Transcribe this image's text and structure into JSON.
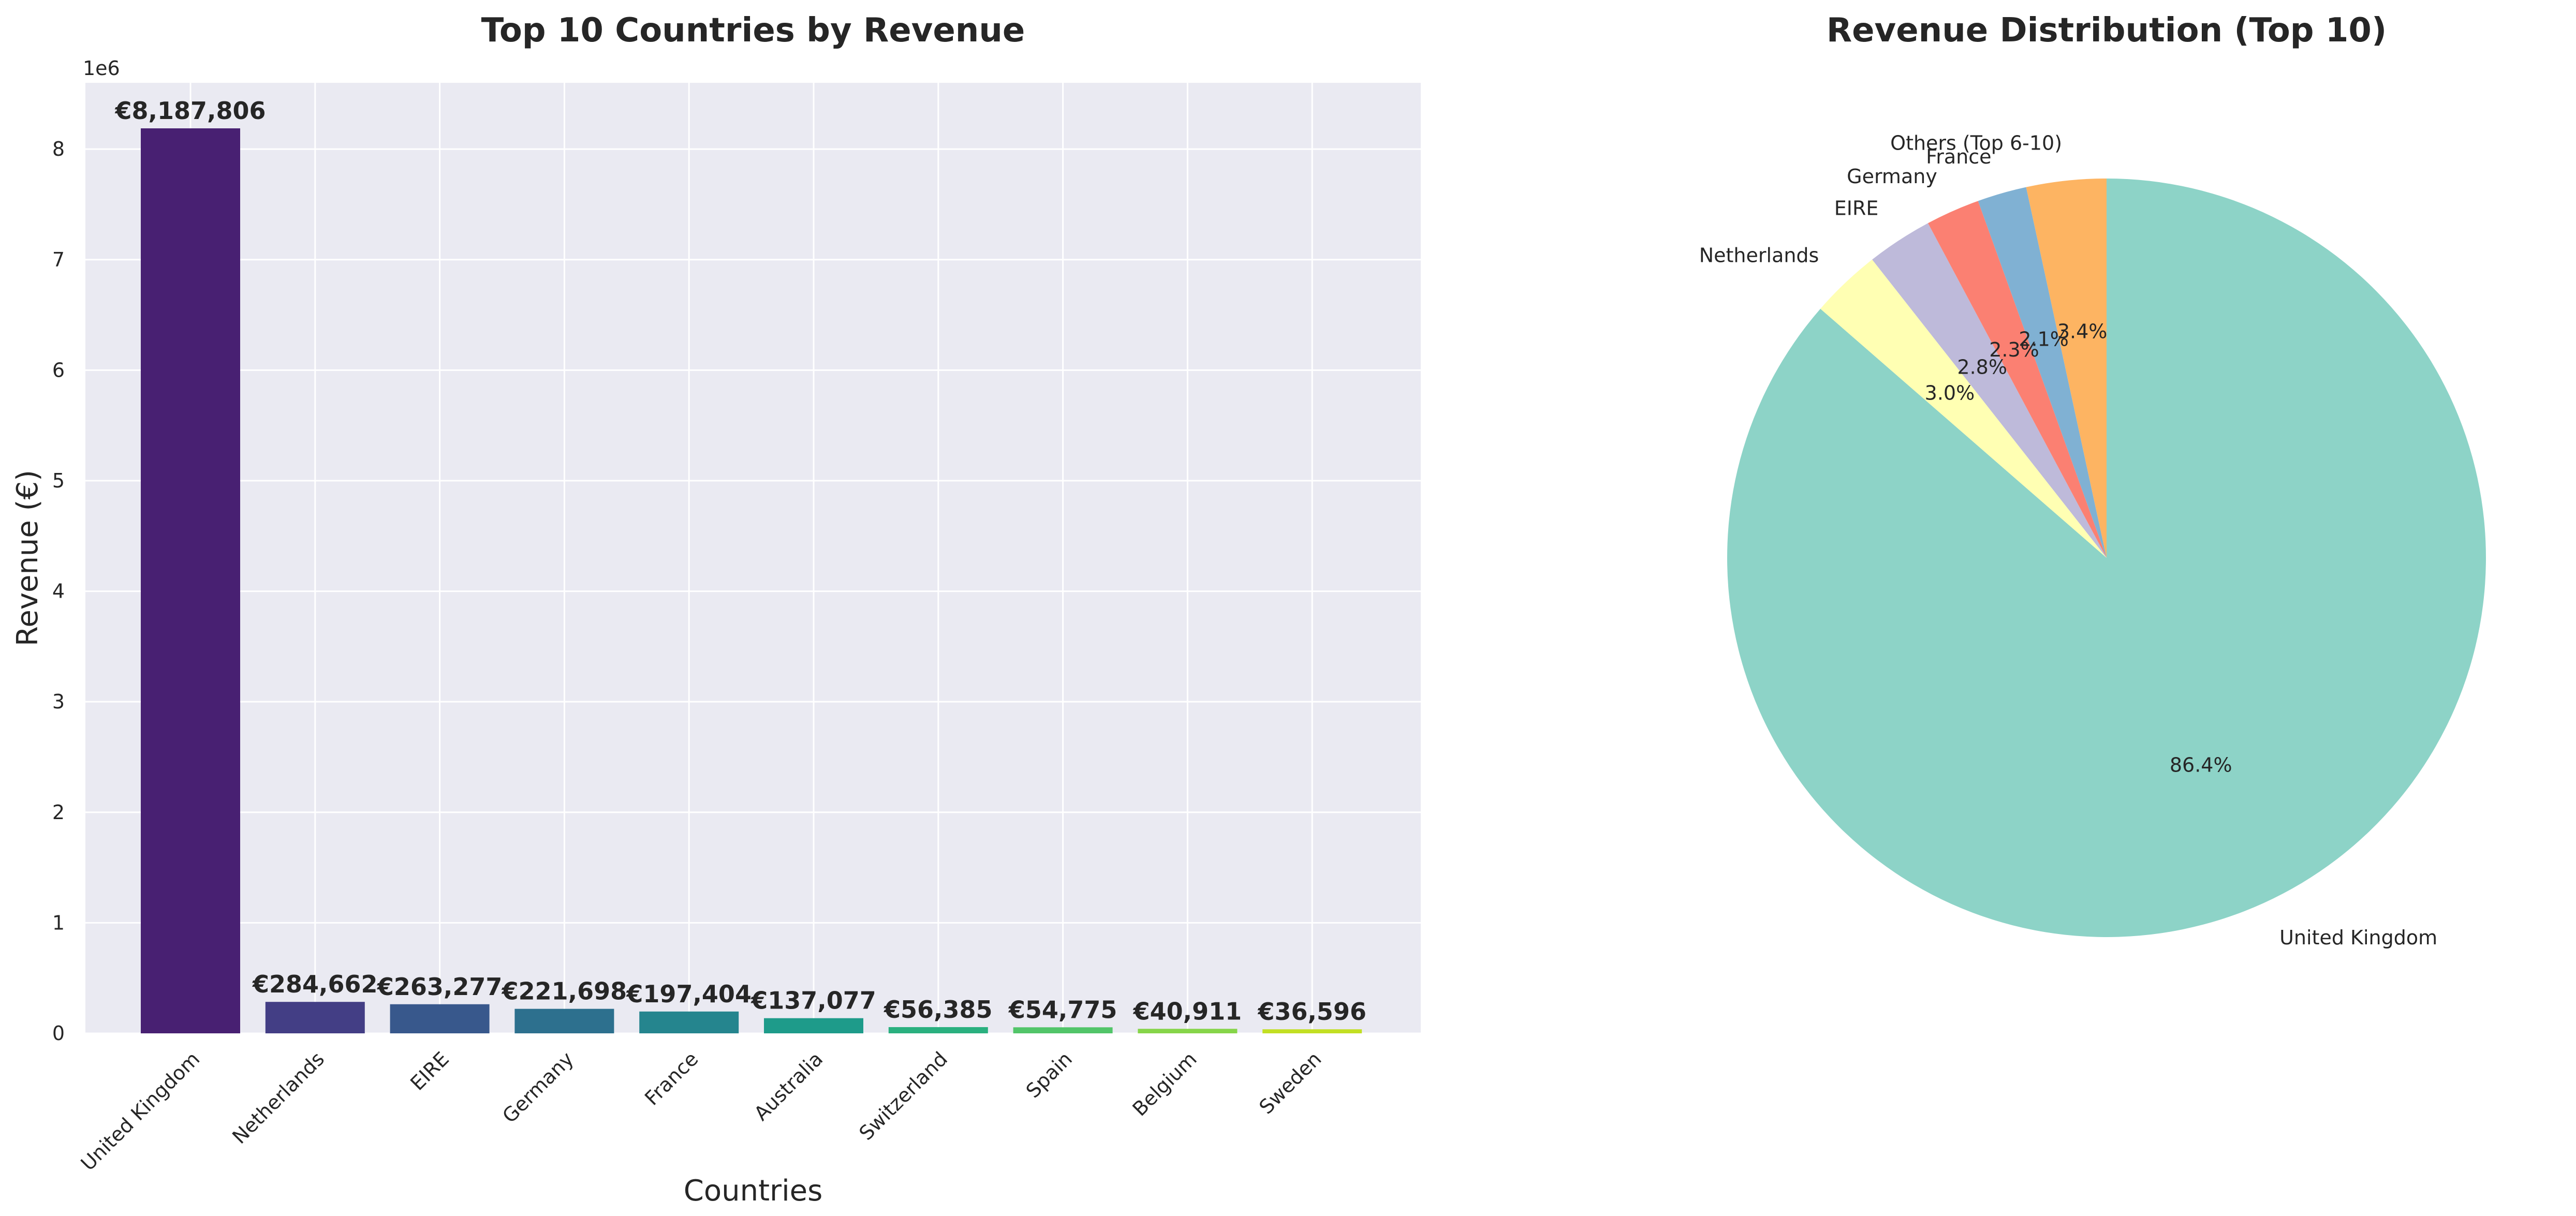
{
  "chart_data": [
    {
      "type": "bar",
      "title": "Top 10 Countries by Revenue",
      "xlabel": "Countries",
      "ylabel": "Revenue (€)",
      "y_offset_label": "1e6",
      "ylim": [
        0,
        8600000
      ],
      "yticks": [
        "0",
        "1",
        "2",
        "3",
        "4",
        "5",
        "6",
        "7",
        "8"
      ],
      "grid": true,
      "categories": [
        "United Kingdom",
        "Netherlands",
        "EIRE",
        "Germany",
        "France",
        "Australia",
        "Switzerland",
        "Spain",
        "Belgium",
        "Sweden"
      ],
      "values": [
        8187806,
        284662,
        263277,
        221698,
        197404,
        137077,
        56385,
        54775,
        40911,
        36596
      ],
      "value_labels": [
        "€8,187,806",
        "€284,662",
        "€263,277",
        "€221,698",
        "€197,404",
        "€137,077",
        "€56,385",
        "€54,775",
        "€40,911",
        "€36,596"
      ],
      "colors": [
        "#482072",
        "#433e85",
        "#38588c",
        "#2d708e",
        "#25858e",
        "#1e9b8a",
        "#2ab07f",
        "#52c569",
        "#86d549",
        "#c2df23"
      ]
    },
    {
      "type": "pie",
      "title": "Revenue Distribution (Top 10)",
      "labels": [
        "United Kingdom",
        "Netherlands",
        "EIRE",
        "Germany",
        "France",
        "Others (Top 6-10)"
      ],
      "values": [
        86.4,
        3.0,
        2.8,
        2.3,
        2.1,
        3.4
      ],
      "pct_labels": [
        "86.4%",
        "3.0%",
        "2.8%",
        "2.3%",
        "2.1%",
        "3.4%"
      ],
      "colors": [
        "#8dd3c7",
        "#ffffb3",
        "#bebada",
        "#fb8072",
        "#80b1d3",
        "#fdb462"
      ],
      "start_angle": 90
    }
  ]
}
